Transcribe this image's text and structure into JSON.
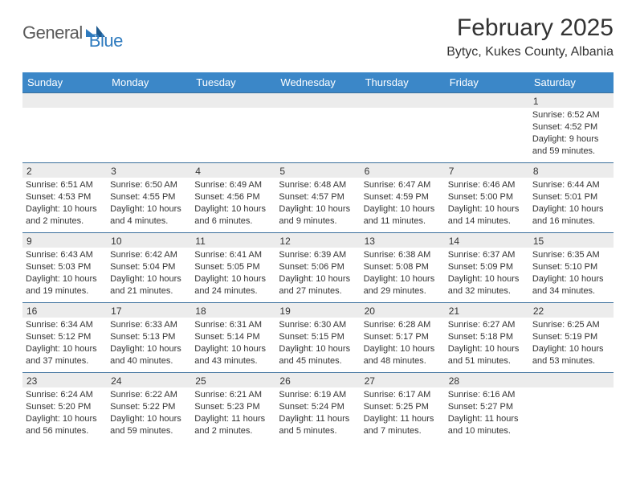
{
  "logo": {
    "general": "General",
    "blue": "Blue"
  },
  "title": "February 2025",
  "location": "Bytyc, Kukes County, Albania",
  "colors": {
    "header_bg": "#3b87c8",
    "header_text": "#ffffff",
    "row_border": "#3b6f9c",
    "daynum_bg": "#ececec",
    "text": "#333333",
    "logo_gray": "#5a5a5a",
    "logo_blue": "#2f7bbf"
  },
  "daysOfWeek": [
    "Sunday",
    "Monday",
    "Tuesday",
    "Wednesday",
    "Thursday",
    "Friday",
    "Saturday"
  ],
  "weeks": [
    [
      {
        "n": "",
        "lines": [
          "",
          "",
          "",
          ""
        ]
      },
      {
        "n": "",
        "lines": [
          "",
          "",
          "",
          ""
        ]
      },
      {
        "n": "",
        "lines": [
          "",
          "",
          "",
          ""
        ]
      },
      {
        "n": "",
        "lines": [
          "",
          "",
          "",
          ""
        ]
      },
      {
        "n": "",
        "lines": [
          "",
          "",
          "",
          ""
        ]
      },
      {
        "n": "",
        "lines": [
          "",
          "",
          "",
          ""
        ]
      },
      {
        "n": "1",
        "lines": [
          "Sunrise: 6:52 AM",
          "Sunset: 4:52 PM",
          "Daylight: 9 hours",
          "and 59 minutes."
        ]
      }
    ],
    [
      {
        "n": "2",
        "lines": [
          "Sunrise: 6:51 AM",
          "Sunset: 4:53 PM",
          "Daylight: 10 hours",
          "and 2 minutes."
        ]
      },
      {
        "n": "3",
        "lines": [
          "Sunrise: 6:50 AM",
          "Sunset: 4:55 PM",
          "Daylight: 10 hours",
          "and 4 minutes."
        ]
      },
      {
        "n": "4",
        "lines": [
          "Sunrise: 6:49 AM",
          "Sunset: 4:56 PM",
          "Daylight: 10 hours",
          "and 6 minutes."
        ]
      },
      {
        "n": "5",
        "lines": [
          "Sunrise: 6:48 AM",
          "Sunset: 4:57 PM",
          "Daylight: 10 hours",
          "and 9 minutes."
        ]
      },
      {
        "n": "6",
        "lines": [
          "Sunrise: 6:47 AM",
          "Sunset: 4:59 PM",
          "Daylight: 10 hours",
          "and 11 minutes."
        ]
      },
      {
        "n": "7",
        "lines": [
          "Sunrise: 6:46 AM",
          "Sunset: 5:00 PM",
          "Daylight: 10 hours",
          "and 14 minutes."
        ]
      },
      {
        "n": "8",
        "lines": [
          "Sunrise: 6:44 AM",
          "Sunset: 5:01 PM",
          "Daylight: 10 hours",
          "and 16 minutes."
        ]
      }
    ],
    [
      {
        "n": "9",
        "lines": [
          "Sunrise: 6:43 AM",
          "Sunset: 5:03 PM",
          "Daylight: 10 hours",
          "and 19 minutes."
        ]
      },
      {
        "n": "10",
        "lines": [
          "Sunrise: 6:42 AM",
          "Sunset: 5:04 PM",
          "Daylight: 10 hours",
          "and 21 minutes."
        ]
      },
      {
        "n": "11",
        "lines": [
          "Sunrise: 6:41 AM",
          "Sunset: 5:05 PM",
          "Daylight: 10 hours",
          "and 24 minutes."
        ]
      },
      {
        "n": "12",
        "lines": [
          "Sunrise: 6:39 AM",
          "Sunset: 5:06 PM",
          "Daylight: 10 hours",
          "and 27 minutes."
        ]
      },
      {
        "n": "13",
        "lines": [
          "Sunrise: 6:38 AM",
          "Sunset: 5:08 PM",
          "Daylight: 10 hours",
          "and 29 minutes."
        ]
      },
      {
        "n": "14",
        "lines": [
          "Sunrise: 6:37 AM",
          "Sunset: 5:09 PM",
          "Daylight: 10 hours",
          "and 32 minutes."
        ]
      },
      {
        "n": "15",
        "lines": [
          "Sunrise: 6:35 AM",
          "Sunset: 5:10 PM",
          "Daylight: 10 hours",
          "and 34 minutes."
        ]
      }
    ],
    [
      {
        "n": "16",
        "lines": [
          "Sunrise: 6:34 AM",
          "Sunset: 5:12 PM",
          "Daylight: 10 hours",
          "and 37 minutes."
        ]
      },
      {
        "n": "17",
        "lines": [
          "Sunrise: 6:33 AM",
          "Sunset: 5:13 PM",
          "Daylight: 10 hours",
          "and 40 minutes."
        ]
      },
      {
        "n": "18",
        "lines": [
          "Sunrise: 6:31 AM",
          "Sunset: 5:14 PM",
          "Daylight: 10 hours",
          "and 43 minutes."
        ]
      },
      {
        "n": "19",
        "lines": [
          "Sunrise: 6:30 AM",
          "Sunset: 5:15 PM",
          "Daylight: 10 hours",
          "and 45 minutes."
        ]
      },
      {
        "n": "20",
        "lines": [
          "Sunrise: 6:28 AM",
          "Sunset: 5:17 PM",
          "Daylight: 10 hours",
          "and 48 minutes."
        ]
      },
      {
        "n": "21",
        "lines": [
          "Sunrise: 6:27 AM",
          "Sunset: 5:18 PM",
          "Daylight: 10 hours",
          "and 51 minutes."
        ]
      },
      {
        "n": "22",
        "lines": [
          "Sunrise: 6:25 AM",
          "Sunset: 5:19 PM",
          "Daylight: 10 hours",
          "and 53 minutes."
        ]
      }
    ],
    [
      {
        "n": "23",
        "lines": [
          "Sunrise: 6:24 AM",
          "Sunset: 5:20 PM",
          "Daylight: 10 hours",
          "and 56 minutes."
        ]
      },
      {
        "n": "24",
        "lines": [
          "Sunrise: 6:22 AM",
          "Sunset: 5:22 PM",
          "Daylight: 10 hours",
          "and 59 minutes."
        ]
      },
      {
        "n": "25",
        "lines": [
          "Sunrise: 6:21 AM",
          "Sunset: 5:23 PM",
          "Daylight: 11 hours",
          "and 2 minutes."
        ]
      },
      {
        "n": "26",
        "lines": [
          "Sunrise: 6:19 AM",
          "Sunset: 5:24 PM",
          "Daylight: 11 hours",
          "and 5 minutes."
        ]
      },
      {
        "n": "27",
        "lines": [
          "Sunrise: 6:17 AM",
          "Sunset: 5:25 PM",
          "Daylight: 11 hours",
          "and 7 minutes."
        ]
      },
      {
        "n": "28",
        "lines": [
          "Sunrise: 6:16 AM",
          "Sunset: 5:27 PM",
          "Daylight: 11 hours",
          "and 10 minutes."
        ]
      },
      {
        "n": "",
        "lines": [
          "",
          "",
          "",
          ""
        ]
      }
    ]
  ]
}
